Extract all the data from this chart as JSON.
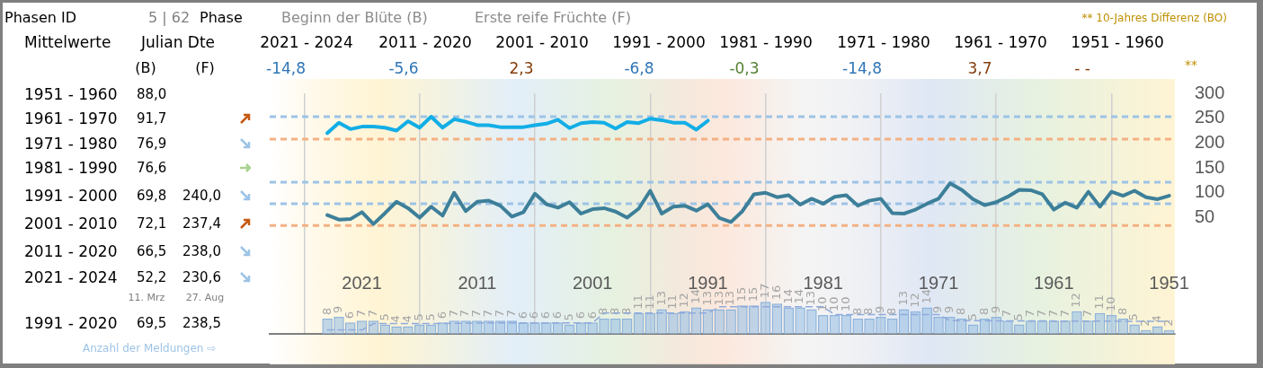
{
  "chart_data": {
    "type": "line",
    "annotations": [
      "Phasen ID",
      "5 | 62",
      "Phase",
      "Beginn der Blüte (B)",
      "Erste reife Früchte (F)",
      "** 10-Jahres Differenz  (BO)",
      "Mittelwerte",
      "Julian Dte",
      "2021 - 2024",
      "2011 - 2020",
      "2001 - 2010",
      "1991 - 2000",
      "1981 - 1990",
      "1971 - 1980",
      "1961 - 1970",
      "1951 - 1960",
      "(B)",
      "(F)",
      "-14,8",
      "-5,6",
      "2,3",
      "-6,8",
      "-0,3",
      "-14,8",
      "3,7",
      "- -",
      "**",
      "1951 - 1960",
      "88,0",
      "1961 - 1970",
      "91,7",
      "1971 - 1980",
      "76,9",
      "1981 - 1990",
      "76,6",
      "1991 - 2000",
      "69,8",
      "240,0",
      "2001 - 2010",
      "72,1",
      "237,4",
      "2011 - 2020",
      "66,5",
      "238,0",
      "2021 - 2024",
      "52,2",
      "230,6",
      "11. Mrz",
      "27. Aug",
      "1991 - 2020",
      "69,5",
      "238,5",
      "Anzahl der Meldungen ⇨"
    ],
    "x": [
      2024,
      2023,
      2022,
      2021,
      2020,
      2019,
      2018,
      2017,
      2016,
      2015,
      2014,
      2013,
      2012,
      2011,
      2010,
      2009,
      2008,
      2007,
      2006,
      2005,
      2004,
      2003,
      2002,
      2001,
      2000,
      1999,
      1998,
      1997,
      1996,
      1995,
      1994,
      1993,
      1992,
      1991,
      1990,
      1989,
      1988,
      1987,
      1986,
      1985,
      1984,
      1983,
      1982,
      1981,
      1980,
      1979,
      1978,
      1977,
      1976,
      1975,
      1974,
      1973,
      1972,
      1971,
      1970,
      1969,
      1968,
      1967,
      1966,
      1965,
      1964,
      1963,
      1962,
      1961,
      1960,
      1959,
      1958,
      1957,
      1956,
      1955,
      1954,
      1953,
      1952,
      1951
    ],
    "series": [
      {
        "color": "#3d7f99",
        "values": [
          55,
          46,
          47,
          61,
          37,
          59,
          82,
          69,
          50,
          72,
          54,
          100,
          63,
          82,
          84,
          74,
          52,
          61,
          98,
          77,
          70,
          81,
          58,
          67,
          69,
          62,
          50,
          68,
          104,
          58,
          72,
          74,
          64,
          77,
          49,
          41,
          63,
          97,
          100,
          91,
          95,
          76,
          88,
          78,
          92,
          95,
          74,
          84,
          88,
          59,
          58,
          66,
          78,
          88,
          119,
          106,
          87,
          75,
          81,
          92,
          106,
          105,
          97,
          66,
          80,
          70,
          102,
          72,
          102,
          94,
          104,
          91,
          87,
          94
        ]
      },
      {
        "color": "#12aee6",
        "x": [
          2024,
          2023,
          2022,
          2021,
          2020,
          2019,
          2018,
          2017,
          2016,
          2015,
          2014,
          2013,
          2012,
          2011,
          2010,
          2009,
          2008,
          2007,
          2006,
          2005,
          2004,
          2003,
          2002,
          2001,
          2000,
          1999,
          1998,
          1997,
          1996,
          1995,
          1994,
          1993,
          1992,
          1991
        ],
        "values": [
          220,
          241,
          228,
          233,
          233,
          231,
          225,
          244,
          231,
          253,
          231,
          248,
          243,
          236,
          236,
          232,
          232,
          232,
          236,
          239,
          247,
          230,
          240,
          242,
          241,
          229,
          242,
          240,
          249,
          246,
          241,
          241,
          227,
          245
        ]
      },
      {
        "type": "bar",
        "axis": "y2",
        "color": "#9dc3e6",
        "data_labels": true,
        "values": [
          8,
          9,
          6,
          7,
          7,
          5,
          4,
          4,
          5,
          5,
          6,
          7,
          7,
          7,
          7,
          7,
          7,
          6,
          6,
          6,
          6,
          5,
          6,
          6,
          8,
          8,
          8,
          11,
          11,
          13,
          11,
          12,
          14,
          13,
          13,
          13,
          15,
          15,
          17,
          16,
          14,
          14,
          13,
          10,
          10,
          10,
          8,
          8,
          9,
          8,
          13,
          12,
          14,
          9,
          9,
          8,
          5,
          8,
          9,
          7,
          5,
          7,
          7,
          7,
          7,
          12,
          7,
          11,
          10,
          8,
          5,
          2,
          4,
          2
        ]
      },
      {
        "type": "line",
        "axis": "y2",
        "color": "#8faadc",
        "line_style": "dashed",
        "x": [
          2024,
          2021,
          2020,
          2014.5,
          2010.5,
          2001,
          2000,
          1991,
          1990,
          1981,
          1980,
          1971,
          1970,
          1951
        ],
        "values": [
          2.1,
          2.1,
          5.4,
          5.4,
          5.8,
          5.8,
          11,
          11,
          14.3,
          14.3,
          10.2,
          10.2,
          7,
          6.6
        ]
      }
    ],
    "xlim": [
      2029,
      1950.5
    ],
    "xticks": [
      2021,
      2011,
      2001,
      1991,
      1981,
      1971,
      1961,
      1951
    ],
    "ylim": [
      -184,
      300
    ],
    "yticks": [
      50,
      100,
      150,
      200,
      250,
      300
    ],
    "y2lim": [
      0,
      127
    ],
    "ref_lines": [
      {
        "axis": "y",
        "value": 253,
        "color": "#9dc3e6",
        "line_style": "dashed"
      },
      {
        "axis": "y",
        "value": 208,
        "color": "#f4b183",
        "line_style": "dashed"
      },
      {
        "axis": "y",
        "value": 121,
        "color": "#9dc3e6",
        "line_style": "dashed"
      },
      {
        "axis": "y",
        "value": 78,
        "color": "#9dc3e6",
        "line_style": "dashed"
      },
      {
        "axis": "y",
        "value": 34,
        "color": "#f4b183",
        "line_style": "dashed"
      }
    ],
    "grid": "x",
    "legend": false,
    "marker": "none"
  }
}
